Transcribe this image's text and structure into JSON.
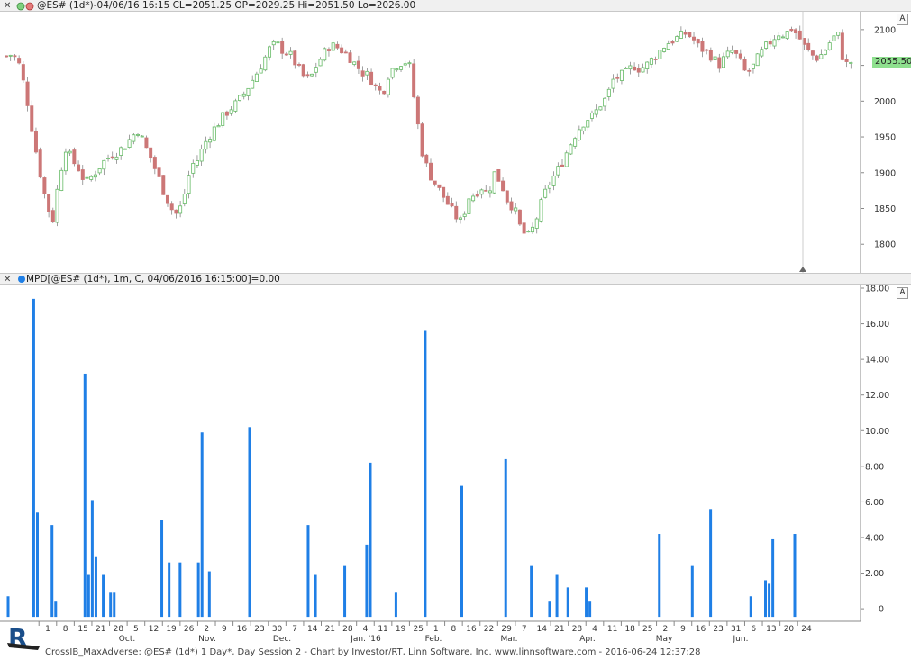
{
  "price_panel": {
    "header": "@ES# (1d*)-04/06/16 16:15 CL=2051.25 OP=2029.25 Hi=2051.50 Lo=2026.00",
    "last_price_label": "2055.50",
    "autoscale_label": "A"
  },
  "indicator_panel": {
    "header": "MPD[@ES# (1d*), 1m, C, 04/06/2016 16:15:00]=0.00",
    "autoscale_label": "A"
  },
  "footer": {
    "text": "CrossIB_MaxAdverse: @ES# (1d*) 1 Day*, Day Session 2 - Chart by Investor/RT, Linn Software, Inc. www.linnsoftware.com - 2016-06-24 12:37:28"
  },
  "colors": {
    "up_candle": "#66bb66",
    "down_candle": "#cc7777",
    "bar": "#1f7fe6",
    "grid": "#dddddd"
  },
  "chart_data": [
    {
      "type": "candlestick",
      "ylim": [
        1760,
        2125
      ],
      "yticks": [
        1800,
        1850,
        1900,
        1950,
        2000,
        2050,
        2100
      ],
      "close_path": [
        2063,
        2066,
        2050,
        2010,
        1955,
        1905,
        1860,
        1830,
        1893,
        1935,
        1917,
        1905,
        1885,
        1895,
        1907,
        1918,
        1925,
        1930,
        1938,
        1950,
        1960,
        1938,
        1918,
        1895,
        1870,
        1850,
        1840,
        1870,
        1910,
        1918,
        1940,
        1955,
        1968,
        1980,
        1990,
        1998,
        2010,
        2025,
        2040,
        2057,
        2075,
        2080,
        2070,
        2065,
        2050,
        2035,
        2030,
        2050,
        2065,
        2078,
        2076,
        2070,
        2062,
        2050,
        2040,
        2035,
        2020,
        2010,
        2040,
        2050,
        2055,
        2055,
        1990,
        1930,
        1900,
        1885,
        1870,
        1855,
        1840,
        1830,
        1865,
        1870,
        1880,
        1870,
        1900,
        1885,
        1860,
        1850,
        1820,
        1810,
        1825,
        1855,
        1880,
        1895,
        1910,
        1930,
        1950,
        1965,
        1975,
        1980,
        1995,
        2005,
        2030,
        2035,
        2040,
        2050,
        2045,
        2050,
        2060,
        2070,
        2080,
        2085,
        2090,
        2095,
        2088,
        2075,
        2070,
        2062,
        2050,
        2062,
        2070,
        2060,
        2040,
        2045,
        2062,
        2075,
        2085,
        2095,
        2093,
        2102,
        2092,
        2075,
        2065,
        2060,
        2070,
        2085,
        2095,
        2050,
        2055
      ],
      "xtick_labels": [
        "1",
        "8",
        "15",
        "21",
        "28",
        "5",
        "12",
        "19",
        "26",
        "2",
        "9",
        "16",
        "23",
        "30",
        "7",
        "14",
        "21",
        "28",
        "4",
        "11",
        "19",
        "25",
        "1",
        "8",
        "16",
        "22",
        "29",
        "7",
        "14",
        "21",
        "28",
        "4",
        "11",
        "18",
        "25",
        "2",
        "9",
        "16",
        "23",
        "31",
        "6",
        "13",
        "20",
        "24"
      ],
      "month_labels": [
        "Oct.",
        "Nov.",
        "Dec.",
        "Jan. '16",
        "Feb.",
        "Mar.",
        "Apr.",
        "May",
        "Jun."
      ]
    },
    {
      "type": "bar",
      "ylim": [
        -0.5,
        18.0
      ],
      "yticks": [
        "0",
        "2.00",
        "4.00",
        "6.00",
        "8.00",
        "10.00",
        "12.00",
        "14.00",
        "16.00",
        "18.00"
      ],
      "values": [
        0.7,
        0,
        0,
        0,
        0,
        0,
        0,
        17.4,
        5.4,
        0,
        0,
        0,
        4.7,
        0.4,
        0,
        0,
        0,
        0,
        0,
        0,
        0,
        13.2,
        1.9,
        6.1,
        2.9,
        0,
        1.9,
        0,
        0.9,
        0.9,
        0,
        0,
        0,
        0,
        0,
        0,
        0,
        0,
        0,
        0,
        0,
        0,
        5.0,
        0,
        2.6,
        0,
        0,
        2.6,
        0,
        0,
        0,
        0,
        2.6,
        9.9,
        0,
        2.1,
        0,
        0,
        0,
        0,
        0,
        0,
        0,
        0,
        0,
        0,
        10.2,
        0,
        0,
        0,
        0,
        0,
        0,
        0,
        0,
        0,
        0,
        0,
        0,
        0,
        0,
        0,
        4.7,
        0,
        1.9,
        0,
        0,
        0,
        0,
        0,
        0,
        0,
        2.4,
        0,
        0,
        0,
        0,
        0,
        3.6,
        8.2,
        0,
        0,
        0,
        0,
        0,
        0,
        0.9,
        0,
        0,
        0,
        0,
        0,
        0,
        0,
        15.6,
        0,
        0,
        0,
        0,
        0,
        0,
        0,
        0,
        0,
        6.9,
        0,
        0,
        0,
        0,
        0,
        0,
        0,
        0,
        0,
        0,
        0,
        8.4,
        0,
        0,
        0,
        0,
        0,
        0,
        2.4,
        0,
        0,
        0,
        0,
        0.4,
        0,
        1.9,
        0,
        0,
        1.2,
        0,
        0,
        0,
        0,
        1.2,
        0.4,
        0,
        0,
        0,
        0,
        0,
        0,
        0,
        0,
        0,
        0,
        0,
        0,
        0,
        0,
        0,
        0,
        0,
        0,
        4.2,
        0,
        0,
        0,
        0,
        0,
        0,
        0,
        0,
        2.4,
        0,
        0,
        0,
        0,
        5.6,
        0,
        0,
        0,
        0,
        0,
        0,
        0,
        0,
        0,
        0,
        0.7,
        0,
        0,
        0,
        1.6,
        1.4,
        3.9,
        0,
        0,
        0,
        0,
        0,
        4.2
      ]
    }
  ]
}
